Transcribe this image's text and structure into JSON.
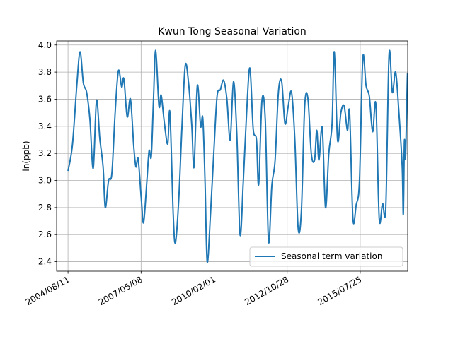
{
  "chart_data": {
    "type": "line",
    "title": "Kwun Tong Seasonal Variation",
    "xlabel": "",
    "ylabel": "ln(ppb)",
    "ylim": [
      2.33,
      4.03
    ],
    "xlim": [
      "2004/03/08",
      "2017/05/05"
    ],
    "yticks": [
      2.4,
      2.6,
      2.8,
      3.0,
      3.2,
      3.4,
      3.6,
      3.8,
      4.0
    ],
    "ytick_labels": [
      "2.4",
      "2.6",
      "2.8",
      "3.0",
      "3.2",
      "3.4",
      "3.6",
      "3.8",
      "4.0"
    ],
    "xticks": [
      "2004/08/11",
      "2007/05/08",
      "2010/02/01",
      "2012/10/28",
      "2015/07/25"
    ],
    "xtick_labels": [
      "2004/08/11",
      "2007/05/08",
      "2010/02/01",
      "2012/10/28",
      "2015/07/25"
    ],
    "grid": true,
    "legend_position": "lower-right",
    "line_color": "#1f77b4",
    "series": [
      {
        "name": "Seasonal term variation",
        "points": [
          [
            "2004/08/11",
            3.07
          ],
          [
            "2004/10/10",
            3.26
          ],
          [
            "2004/12/09",
            3.7
          ],
          [
            "2005/01/23",
            3.95
          ],
          [
            "2005/03/09",
            3.72
          ],
          [
            "2005/04/23",
            3.65
          ],
          [
            "2005/06/07",
            3.45
          ],
          [
            "2005/07/22",
            3.09
          ],
          [
            "2005/09/05",
            3.59
          ],
          [
            "2005/10/20",
            3.31
          ],
          [
            "2005/12/04",
            3.1
          ],
          [
            "2006/01/03",
            2.8
          ],
          [
            "2006/02/17",
            3.0
          ],
          [
            "2006/04/03",
            3.05
          ],
          [
            "2006/05/18",
            3.5
          ],
          [
            "2006/07/02",
            3.81
          ],
          [
            "2006/08/16",
            3.69
          ],
          [
            "2006/09/15",
            3.75
          ],
          [
            "2006/10/30",
            3.47
          ],
          [
            "2006/12/14",
            3.6
          ],
          [
            "2007/01/28",
            3.25
          ],
          [
            "2007/02/27",
            3.1
          ],
          [
            "2007/03/29",
            3.16
          ],
          [
            "2007/05/13",
            2.85
          ],
          [
            "2007/06/12",
            2.69
          ],
          [
            "2007/07/27",
            3.0
          ],
          [
            "2007/08/26",
            3.22
          ],
          [
            "2007/09/25",
            3.18
          ],
          [
            "2007/10/25",
            3.6
          ],
          [
            "2007/11/24",
            3.96
          ],
          [
            "2008/01/08",
            3.55
          ],
          [
            "2008/02/07",
            3.63
          ],
          [
            "2008/03/23",
            3.42
          ],
          [
            "2008/05/07",
            3.27
          ],
          [
            "2008/06/06",
            3.5
          ],
          [
            "2008/07/21",
            2.75
          ],
          [
            "2008/08/20",
            2.54
          ],
          [
            "2008/10/04",
            2.85
          ],
          [
            "2008/11/18",
            3.4
          ],
          [
            "2009/01/02",
            3.85
          ],
          [
            "2009/02/16",
            3.72
          ],
          [
            "2009/04/02",
            3.4
          ],
          [
            "2009/05/02",
            3.1
          ],
          [
            "2009/06/16",
            3.7
          ],
          [
            "2009/07/31",
            3.4
          ],
          [
            "2009/08/30",
            3.46
          ],
          [
            "2009/09/29",
            3.0
          ],
          [
            "2009/10/29",
            2.4
          ],
          [
            "2009/12/13",
            2.75
          ],
          [
            "2010/01/27",
            3.2
          ],
          [
            "2010/03/13",
            3.62
          ],
          [
            "2010/04/27",
            3.67
          ],
          [
            "2010/06/11",
            3.74
          ],
          [
            "2010/07/26",
            3.6
          ],
          [
            "2010/09/09",
            3.3
          ],
          [
            "2010/10/24",
            3.73
          ],
          [
            "2010/12/08",
            3.35
          ],
          [
            "2011/01/22",
            2.6
          ],
          [
            "2011/03/08",
            3.0
          ],
          [
            "2011/04/22",
            3.5
          ],
          [
            "2011/06/06",
            3.83
          ],
          [
            "2011/07/21",
            3.38
          ],
          [
            "2011/09/04",
            3.3
          ],
          [
            "2011/10/04",
            2.97
          ],
          [
            "2011/11/18",
            3.59
          ],
          [
            "2012/01/02",
            3.45
          ],
          [
            "2012/02/16",
            2.55
          ],
          [
            "2012/04/01",
            2.96
          ],
          [
            "2012/05/16",
            3.15
          ],
          [
            "2012/06/30",
            3.65
          ],
          [
            "2012/08/14",
            3.73
          ],
          [
            "2012/09/28",
            3.42
          ],
          [
            "2012/11/12",
            3.55
          ],
          [
            "2012/12/27",
            3.65
          ],
          [
            "2013/02/10",
            3.3
          ],
          [
            "2013/03/27",
            2.65
          ],
          [
            "2013/05/11",
            2.78
          ],
          [
            "2013/06/25",
            3.55
          ],
          [
            "2013/08/09",
            3.6
          ],
          [
            "2013/09/23",
            3.2
          ],
          [
            "2013/11/07",
            3.15
          ],
          [
            "2013/12/07",
            3.37
          ],
          [
            "2014/01/06",
            3.15
          ],
          [
            "2014/02/20",
            3.39
          ],
          [
            "2014/04/06",
            2.8
          ],
          [
            "2014/05/21",
            3.2
          ],
          [
            "2014/07/05",
            3.42
          ],
          [
            "2014/08/04",
            3.95
          ],
          [
            "2014/09/18",
            3.3
          ],
          [
            "2014/11/02",
            3.5
          ],
          [
            "2014/12/17",
            3.55
          ],
          [
            "2015/01/31",
            3.37
          ],
          [
            "2015/03/02",
            3.5
          ],
          [
            "2015/04/16",
            2.72
          ],
          [
            "2015/05/31",
            2.82
          ],
          [
            "2015/07/15",
            3.0
          ],
          [
            "2015/08/29",
            3.9
          ],
          [
            "2015/10/13",
            3.7
          ],
          [
            "2015/11/27",
            3.62
          ],
          [
            "2016/01/11",
            3.36
          ],
          [
            "2016/02/25",
            3.56
          ],
          [
            "2016/04/10",
            2.72
          ],
          [
            "2016/05/25",
            2.83
          ],
          [
            "2016/07/09",
            2.8
          ],
          [
            "2016/08/23",
            3.93
          ],
          [
            "2016/10/07",
            3.65
          ],
          [
            "2016/11/21",
            3.8
          ],
          [
            "2017/01/05",
            3.5
          ],
          [
            "2017/02/19",
            3.1
          ],
          [
            "2017/03/06",
            2.75
          ],
          [
            "2017/03/21",
            3.29
          ],
          [
            "2017/04/05",
            3.16
          ],
          [
            "2017/04/20",
            3.5
          ],
          [
            "2017/05/01",
            3.77
          ],
          [
            "2017/05/05",
            3.76
          ]
        ]
      }
    ]
  }
}
